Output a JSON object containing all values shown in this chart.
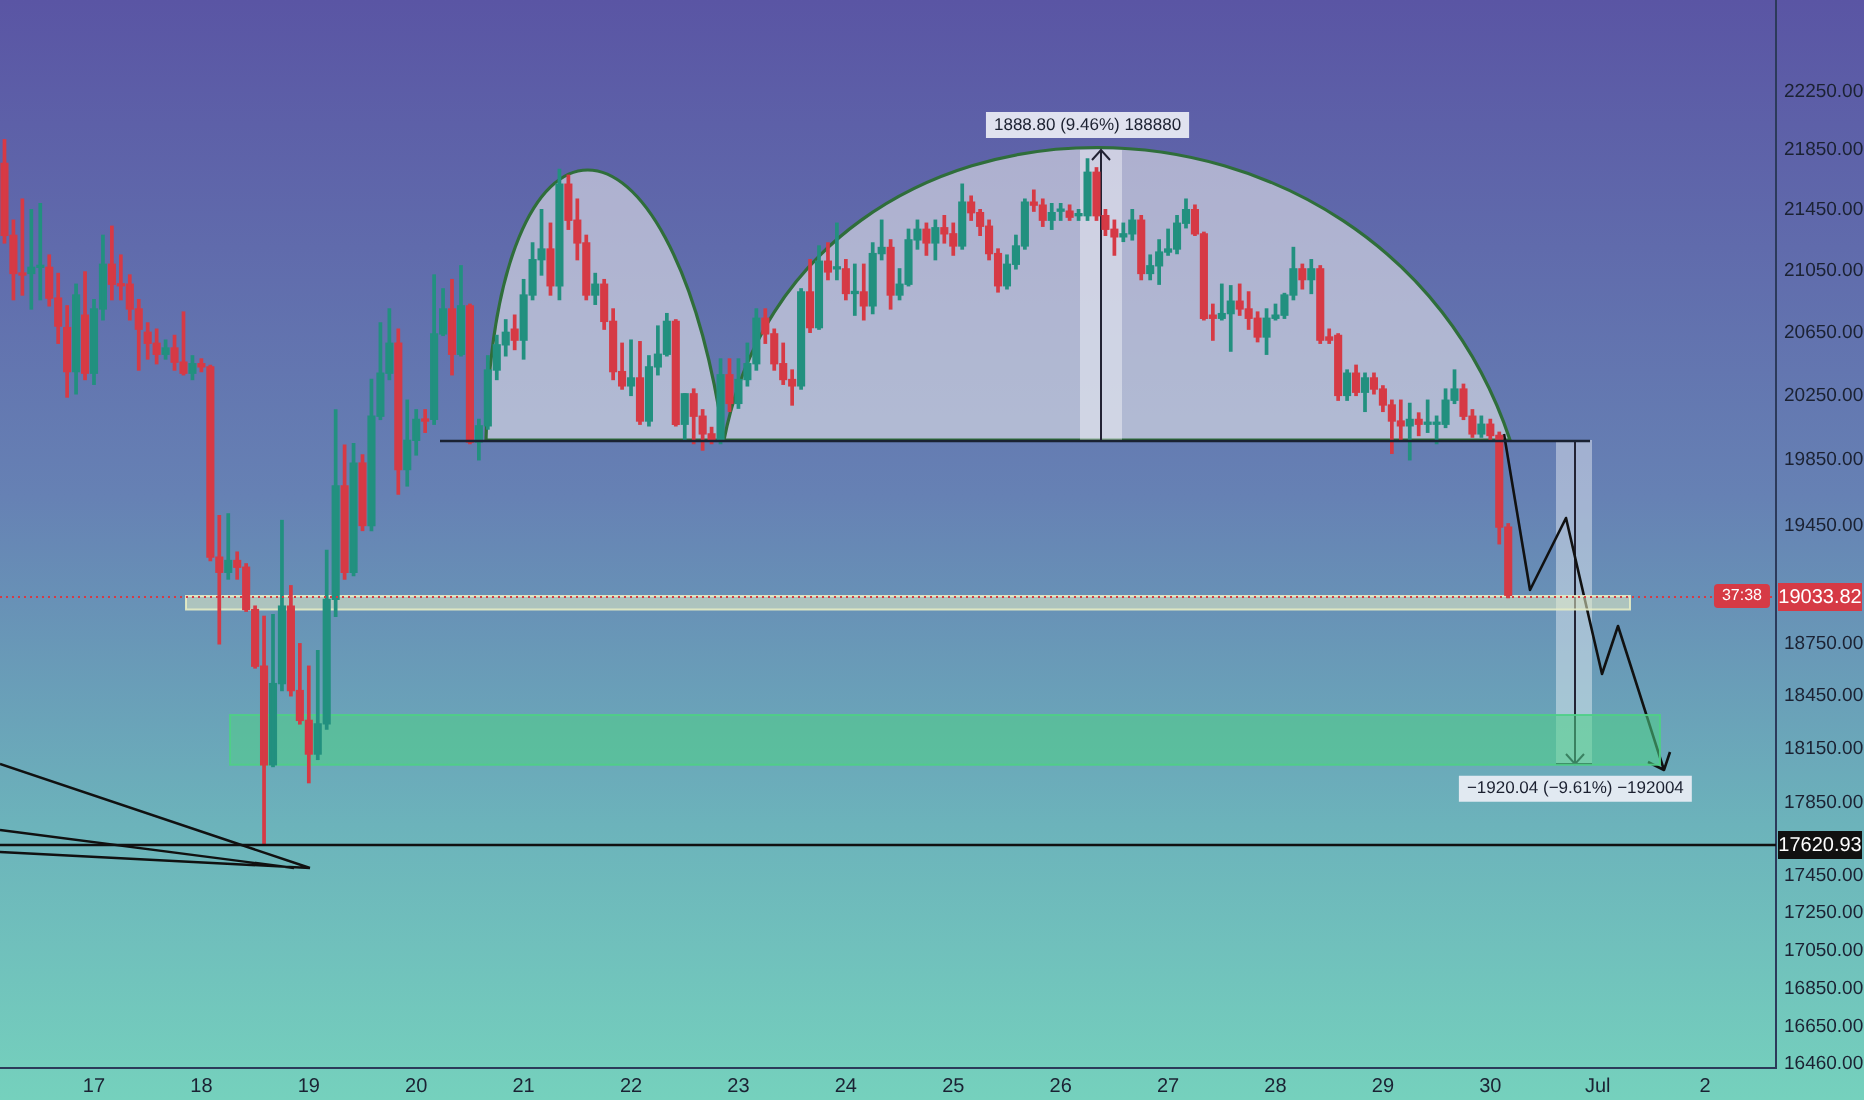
{
  "chart_data": {
    "type": "candlestick",
    "log": true,
    "x": [
      "--06-16T04:00",
      "--06-16T06:00",
      "--06-16T08:00",
      "--06-16T10:00",
      "--06-16T12:00",
      "--06-16T14:00",
      "--06-16T16:00",
      "--06-16T18:00",
      "--06-16T20:00",
      "--06-16T22:00",
      "--06-17T00:00",
      "--06-17T02:00",
      "--06-17T04:00",
      "--06-17T06:00",
      "--06-17T08:00",
      "--06-17T10:00",
      "--06-17T12:00",
      "--06-17T14:00",
      "--06-17T16:00",
      "--06-17T18:00",
      "--06-17T20:00",
      "--06-17T22:00",
      "--06-18T00:00",
      "--06-18T02:00",
      "--06-18T04:00",
      "--06-18T06:00",
      "--06-18T08:00",
      "--06-18T10:00",
      "--06-18T12:00",
      "--06-18T14:00",
      "--06-18T16:00",
      "--06-18T18:00",
      "--06-18T20:00",
      "--06-18T22:00",
      "--06-19T00:00",
      "--06-19T02:00",
      "--06-19T04:00",
      "--06-19T06:00",
      "--06-19T08:00",
      "--06-19T10:00",
      "--06-19T12:00",
      "--06-19T14:00",
      "--06-19T16:00",
      "--06-19T18:00",
      "--06-19T20:00",
      "--06-19T22:00",
      "--06-20T00:00",
      "--06-20T02:00",
      "--06-20T04:00",
      "--06-20T06:00",
      "--06-20T08:00",
      "--06-20T10:00",
      "--06-20T12:00",
      "--06-20T14:00",
      "--06-20T16:00",
      "--06-20T18:00",
      "--06-20T20:00",
      "--06-20T22:00",
      "--06-21T00:00",
      "--06-21T02:00",
      "--06-21T04:00",
      "--06-21T06:00",
      "--06-21T08:00",
      "--06-21T10:00",
      "--06-21T12:00",
      "--06-21T14:00",
      "--06-21T16:00",
      "--06-21T18:00",
      "--06-21T20:00",
      "--06-21T22:00",
      "--06-22T00:00",
      "--06-22T02:00",
      "--06-22T04:00",
      "--06-22T06:00",
      "--06-22T08:00",
      "--06-22T10:00",
      "--06-22T12:00",
      "--06-22T14:00",
      "--06-22T16:00",
      "--06-22T18:00",
      "--06-22T20:00",
      "--06-22T22:00",
      "--06-23T00:00",
      "--06-23T02:00",
      "--06-23T04:00",
      "--06-23T06:00",
      "--06-23T08:00",
      "--06-23T10:00",
      "--06-23T12:00",
      "--06-23T14:00",
      "--06-23T16:00",
      "--06-23T18:00",
      "--06-23T20:00",
      "--06-23T22:00",
      "--06-24T00:00",
      "--06-24T02:00",
      "--06-24T04:00",
      "--06-24T06:00",
      "--06-24T08:00",
      "--06-24T10:00",
      "--06-24T12:00",
      "--06-24T14:00",
      "--06-24T16:00",
      "--06-24T18:00",
      "--06-24T20:00",
      "--06-24T22:00",
      "--06-25T00:00",
      "--06-25T02:00",
      "--06-25T04:00",
      "--06-25T06:00",
      "--06-25T08:00",
      "--06-25T10:00",
      "--06-25T12:00",
      "--06-25T14:00",
      "--06-25T16:00",
      "--06-25T18:00",
      "--06-25T20:00",
      "--06-25T22:00",
      "--06-26T00:00",
      "--06-26T02:00",
      "--06-26T04:00",
      "--06-26T06:00",
      "--06-26T08:00",
      "--06-26T10:00",
      "--06-26T12:00",
      "--06-26T14:00",
      "--06-26T16:00",
      "--06-26T18:00",
      "--06-26T20:00",
      "--06-26T22:00",
      "--06-27T00:00",
      "--06-27T02:00",
      "--06-27T04:00",
      "--06-27T06:00",
      "--06-27T08:00",
      "--06-27T10:00",
      "--06-27T12:00",
      "--06-27T14:00",
      "--06-27T16:00",
      "--06-27T18:00",
      "--06-27T20:00",
      "--06-27T22:00",
      "--06-28T00:00",
      "--06-28T02:00",
      "--06-28T04:00",
      "--06-28T06:00",
      "--06-28T08:00",
      "--06-28T10:00",
      "--06-28T12:00",
      "--06-28T14:00",
      "--06-28T16:00",
      "--06-28T18:00",
      "--06-28T20:00",
      "--06-28T22:00",
      "--06-29T00:00",
      "--06-29T02:00",
      "--06-29T04:00",
      "--06-29T06:00",
      "--06-29T08:00",
      "--06-29T10:00",
      "--06-29T12:00",
      "--06-29T14:00",
      "--06-29T16:00",
      "--06-29T18:00",
      "--06-29T20:00",
      "--06-29T22:00",
      "--06-30T00:00",
      "--06-30T02:00",
      "--06-30T04:00"
    ],
    "ohlc": [
      [
        21760,
        21920,
        21230,
        21280
      ],
      [
        21280,
        21380,
        20860,
        21030
      ],
      [
        21030,
        21520,
        20890,
        21020
      ],
      [
        21030,
        21450,
        20800,
        21070
      ],
      [
        21070,
        21490,
        20860,
        21070
      ],
      [
        21070,
        21150,
        20820,
        20870
      ],
      [
        20870,
        21030,
        20580,
        20690
      ],
      [
        20680,
        20820,
        20240,
        20400
      ],
      [
        20400,
        20960,
        20260,
        20890
      ],
      [
        20760,
        21040,
        20350,
        20390
      ],
      [
        20390,
        20860,
        20320,
        20800
      ],
      [
        20800,
        21280,
        20730,
        21090
      ],
      [
        21090,
        21340,
        20860,
        20960
      ],
      [
        20960,
        21150,
        20860,
        20950
      ],
      [
        20960,
        21020,
        20730,
        20800
      ],
      [
        20800,
        20860,
        20410,
        20670
      ],
      [
        20650,
        20710,
        20480,
        20580
      ],
      [
        20580,
        20670,
        20450,
        20510
      ],
      [
        20510,
        20600,
        20480,
        20550
      ],
      [
        20550,
        20630,
        20410,
        20460
      ],
      [
        20460,
        20780,
        20380,
        20390
      ],
      [
        20390,
        20500,
        20350,
        20450
      ],
      [
        20450,
        20480,
        20400,
        20430
      ],
      [
        20430,
        20440,
        19240,
        19260
      ],
      [
        19260,
        19510,
        18750,
        19170
      ],
      [
        19170,
        19520,
        19130,
        19240
      ],
      [
        19240,
        19290,
        19130,
        19200
      ],
      [
        19200,
        19220,
        18940,
        18950
      ],
      [
        18950,
        18970,
        18610,
        18620
      ],
      [
        18620,
        18910,
        17621,
        18060
      ],
      [
        18060,
        18920,
        18050,
        18520
      ],
      [
        18520,
        19480,
        18480,
        18970
      ],
      [
        18970,
        19090,
        18450,
        18480
      ],
      [
        18480,
        18750,
        18290,
        18310
      ],
      [
        18310,
        18620,
        17960,
        18120
      ],
      [
        18120,
        18710,
        18090,
        18290
      ],
      [
        18290,
        19300,
        18260,
        19010
      ],
      [
        19010,
        20160,
        18910,
        19690
      ],
      [
        19690,
        19940,
        19130,
        19170
      ],
      [
        19170,
        19950,
        19150,
        19830
      ],
      [
        19830,
        19880,
        19420,
        19450
      ],
      [
        19450,
        20350,
        19420,
        20120
      ],
      [
        20120,
        20710,
        20100,
        20390
      ],
      [
        20390,
        20800,
        20350,
        20580
      ],
      [
        20580,
        20670,
        19640,
        19790
      ],
      [
        19790,
        20220,
        19690,
        19970
      ],
      [
        19970,
        20160,
        19880,
        20100
      ],
      [
        20100,
        20160,
        20020,
        20090
      ],
      [
        20100,
        21020,
        20070,
        20640
      ],
      [
        20640,
        20930,
        20630,
        20800
      ],
      [
        20800,
        20990,
        20380,
        20510
      ],
      [
        20510,
        21080,
        20500,
        20820
      ],
      [
        20820,
        20830,
        19950,
        19960
      ],
      [
        19960,
        20100,
        19850,
        20060
      ],
      [
        20060,
        20500,
        20040,
        20410
      ],
      [
        20410,
        20630,
        20350,
        20570
      ],
      [
        20570,
        20730,
        20500,
        20650
      ],
      [
        20670,
        20760,
        20540,
        20600
      ],
      [
        20600,
        20990,
        20480,
        20890
      ],
      [
        20890,
        21230,
        20860,
        21120
      ],
      [
        21120,
        21450,
        21020,
        21190
      ],
      [
        21190,
        21360,
        20890,
        20950
      ],
      [
        20950,
        21720,
        20860,
        21620
      ],
      [
        21620,
        21680,
        21320,
        21380
      ],
      [
        21380,
        21520,
        21120,
        21230
      ],
      [
        21230,
        21280,
        20860,
        20890
      ],
      [
        20890,
        21030,
        20830,
        20960
      ],
      [
        20960,
        20990,
        20670,
        20720
      ],
      [
        20720,
        20800,
        20350,
        20400
      ],
      [
        20400,
        20580,
        20290,
        20310
      ],
      [
        20310,
        20600,
        20250,
        20360
      ],
      [
        20360,
        20590,
        20070,
        20090
      ],
      [
        20090,
        20500,
        20060,
        20430
      ],
      [
        20430,
        20690,
        20380,
        20510
      ],
      [
        20510,
        20770,
        20500,
        20720
      ],
      [
        20720,
        20730,
        20060,
        20070
      ],
      [
        20070,
        20260,
        19970,
        20260
      ],
      [
        20260,
        20290,
        19950,
        20120
      ],
      [
        20120,
        20160,
        19910,
        20010
      ],
      [
        20010,
        20050,
        19950,
        19970
      ],
      [
        19970,
        20480,
        19950,
        20380
      ],
      [
        20380,
        20480,
        20150,
        20200
      ],
      [
        20200,
        20480,
        20170,
        20350
      ],
      [
        20350,
        20580,
        20310,
        20450
      ],
      [
        20450,
        20800,
        20410,
        20740
      ],
      [
        20740,
        20800,
        20580,
        20640
      ],
      [
        20640,
        20670,
        20410,
        20450
      ],
      [
        20450,
        20580,
        20320,
        20350
      ],
      [
        20350,
        20410,
        20190,
        20310
      ],
      [
        20310,
        20930,
        20290,
        20910
      ],
      [
        20910,
        21120,
        20650,
        20680
      ],
      [
        20680,
        21210,
        20670,
        21110
      ],
      [
        21110,
        21230,
        20990,
        21040
      ],
      [
        21060,
        21360,
        20990,
        21070
      ],
      [
        21060,
        21120,
        20860,
        20900
      ],
      [
        20900,
        21090,
        20760,
        20910
      ],
      [
        20910,
        21090,
        20730,
        20820
      ],
      [
        20820,
        21230,
        20770,
        21160
      ],
      [
        21160,
        21380,
        21120,
        21200
      ],
      [
        21200,
        21250,
        20800,
        20890
      ],
      [
        20890,
        21060,
        20860,
        20960
      ],
      [
        20960,
        21320,
        20950,
        21250
      ],
      [
        21250,
        21380,
        21190,
        21320
      ],
      [
        21320,
        21360,
        21150,
        21230
      ],
      [
        21230,
        21380,
        21120,
        21330
      ],
      [
        21330,
        21410,
        21230,
        21290
      ],
      [
        21290,
        21360,
        21150,
        21210
      ],
      [
        21210,
        21620,
        21190,
        21500
      ],
      [
        21500,
        21540,
        21380,
        21430
      ],
      [
        21430,
        21450,
        21280,
        21340
      ],
      [
        21340,
        21380,
        21120,
        21160
      ],
      [
        21160,
        21190,
        20910,
        20950
      ],
      [
        20950,
        21150,
        20930,
        21090
      ],
      [
        21090,
        21280,
        21060,
        21210
      ],
      [
        21210,
        21520,
        21190,
        21500
      ],
      [
        21500,
        21580,
        21440,
        21480
      ],
      [
        21480,
        21520,
        21340,
        21380
      ],
      [
        21380,
        21490,
        21320,
        21430
      ],
      [
        21440,
        21490,
        21380,
        21440
      ],
      [
        21440,
        21480,
        21380,
        21400
      ],
      [
        21410,
        21450,
        21380,
        21410
      ],
      [
        21410,
        21790,
        21380,
        21700
      ],
      [
        21700,
        21730,
        21380,
        21410
      ],
      [
        21410,
        21450,
        21280,
        21320
      ],
      [
        21320,
        21380,
        21150,
        21270
      ],
      [
        21270,
        21360,
        21240,
        21290
      ],
      [
        21290,
        21450,
        21250,
        21380
      ],
      [
        21380,
        21410,
        20990,
        21030
      ],
      [
        21030,
        21150,
        20990,
        21080
      ],
      [
        21080,
        21250,
        20960,
        21170
      ],
      [
        21170,
        21320,
        21150,
        21190
      ],
      [
        21190,
        21410,
        21160,
        21360
      ],
      [
        21360,
        21520,
        21330,
        21450
      ],
      [
        21450,
        21480,
        21280,
        21290
      ],
      [
        21290,
        21300,
        20730,
        20740
      ],
      [
        20760,
        20830,
        20600,
        20740
      ],
      [
        20740,
        20960,
        20730,
        20770
      ],
      [
        20770,
        20950,
        20530,
        20850
      ],
      [
        20850,
        20960,
        20760,
        20800
      ],
      [
        20800,
        20910,
        20670,
        20740
      ],
      [
        20740,
        20780,
        20590,
        20620
      ],
      [
        20620,
        20800,
        20510,
        20740
      ],
      [
        20740,
        20830,
        20730,
        20760
      ],
      [
        20760,
        20900,
        20740,
        20890
      ],
      [
        20890,
        21200,
        20860,
        21060
      ],
      [
        21060,
        21090,
        20930,
        20990
      ],
      [
        20990,
        21120,
        20900,
        21060
      ],
      [
        21060,
        21080,
        20580,
        20600
      ],
      [
        20620,
        20670,
        20580,
        20600
      ],
      [
        20630,
        20640,
        20220,
        20250
      ],
      [
        20250,
        20410,
        20220,
        20390
      ],
      [
        20390,
        20440,
        20250,
        20270
      ],
      [
        20270,
        20390,
        20150,
        20360
      ],
      [
        20360,
        20390,
        20260,
        20290
      ],
      [
        20290,
        20310,
        20150,
        20190
      ],
      [
        20190,
        20220,
        19890,
        20090
      ],
      [
        20090,
        20220,
        19970,
        20060
      ],
      [
        20060,
        20200,
        19850,
        20100
      ],
      [
        20100,
        20140,
        20000,
        20070
      ],
      [
        20070,
        20220,
        20020,
        20070
      ],
      [
        20070,
        20120,
        19950,
        20070
      ],
      [
        20070,
        20290,
        20050,
        20220
      ],
      [
        20220,
        20410,
        20200,
        20290
      ],
      [
        20290,
        20320,
        20100,
        20120
      ],
      [
        20120,
        20160,
        19990,
        20010
      ],
      [
        20010,
        20120,
        19990,
        20070
      ],
      [
        20070,
        20100,
        19970,
        20000
      ],
      [
        20000,
        20020,
        19340,
        19440
      ],
      [
        19440,
        19460,
        19020,
        19033.82
      ]
    ],
    "colors": [
      "#d63a45",
      "#d63a45",
      "#d63a45",
      "#22907f",
      "#22907f",
      "#d63a45",
      "#d63a45",
      "#d63a45",
      "#22907f",
      "#d63a45",
      "#22907f",
      "#22907f",
      "#d63a45",
      "#d63a45",
      "#d63a45",
      "#d63a45",
      "#d63a45",
      "#d63a45",
      "#22907f",
      "#d63a45",
      "#d63a45",
      "#22907f",
      "#d63a45",
      "#d63a45",
      "#d63a45",
      "#22907f",
      "#d63a45",
      "#d63a45",
      "#d63a45",
      "#d63a45",
      "#22907f",
      "#22907f",
      "#d63a45",
      "#d63a45",
      "#d63a45",
      "#22907f",
      "#22907f",
      "#22907f",
      "#d63a45",
      "#22907f",
      "#d63a45",
      "#22907f",
      "#22907f",
      "#22907f",
      "#d63a45",
      "#22907f",
      "#22907f",
      "#d63a45",
      "#22907f",
      "#22907f",
      "#d63a45",
      "#22907f",
      "#d63a45",
      "#22907f",
      "#22907f",
      "#22907f",
      "#22907f",
      "#d63a45",
      "#22907f",
      "#22907f",
      "#22907f",
      "#d63a45",
      "#22907f",
      "#d63a45",
      "#d63a45",
      "#d63a45",
      "#22907f",
      "#d63a45",
      "#d63a45",
      "#d63a45",
      "#22907f",
      "#d63a45",
      "#22907f",
      "#22907f",
      "#22907f",
      "#d63a45",
      "#22907f",
      "#d63a45",
      "#d63a45",
      "#d63a45",
      "#22907f",
      "#d63a45",
      "#22907f",
      "#22907f",
      "#22907f",
      "#d63a45",
      "#d63a45",
      "#d63a45",
      "#d63a45",
      "#22907f",
      "#d63a45",
      "#22907f",
      "#d63a45",
      "#22907f",
      "#d63a45",
      "#22907f",
      "#d63a45",
      "#22907f",
      "#22907f",
      "#d63a45",
      "#22907f",
      "#22907f",
      "#22907f",
      "#d63a45",
      "#22907f",
      "#d63a45",
      "#d63a45",
      "#22907f",
      "#d63a45",
      "#d63a45",
      "#d63a45",
      "#d63a45",
      "#22907f",
      "#22907f",
      "#22907f",
      "#d63a45",
      "#d63a45",
      "#22907f",
      "#22907f",
      "#d63a45",
      "#22907f",
      "#22907f",
      "#d63a45",
      "#d63a45",
      "#d63a45",
      "#22907f",
      "#22907f",
      "#d63a45",
      "#22907f",
      "#22907f",
      "#22907f",
      "#22907f",
      "#22907f",
      "#d63a45",
      "#d63a45",
      "#d63a45",
      "#22907f",
      "#22907f",
      "#d63a45",
      "#d63a45",
      "#d63a45",
      "#22907f",
      "#22907f",
      "#22907f",
      "#22907f",
      "#d63a45",
      "#22907f",
      "#d63a45",
      "#d63a45",
      "#d63a45",
      "#22907f",
      "#d63a45",
      "#22907f",
      "#d63a45",
      "#d63a45",
      "#d63a45",
      "#d63a45",
      "#22907f",
      "#d63a45",
      "#22907f",
      "#22907f",
      "#22907f",
      "#22907f",
      "#d63a45",
      "#d63a45",
      "#22907f",
      "#d63a45",
      "#d63a45",
      "#d63a45"
    ],
    "xlim": [
      "--06-16T03:00",
      "--07-02T15:50"
    ],
    "xticks": [
      {
        "value": "--06-17",
        "label": "17"
      },
      {
        "value": "--06-18",
        "label": "18"
      },
      {
        "value": "--06-19",
        "label": "19"
      },
      {
        "value": "--06-20",
        "label": "20"
      },
      {
        "value": "--06-21",
        "label": "21"
      },
      {
        "value": "--06-22",
        "label": "22"
      },
      {
        "value": "--06-23",
        "label": "23"
      },
      {
        "value": "--06-24",
        "label": "24"
      },
      {
        "value": "--06-25",
        "label": "25"
      },
      {
        "value": "--06-26",
        "label": "26"
      },
      {
        "value": "--06-27",
        "label": "27"
      },
      {
        "value": "--06-28",
        "label": "28"
      },
      {
        "value": "--06-29",
        "label": "29"
      },
      {
        "value": "--06-30",
        "label": "30"
      },
      {
        "value": "--07-01",
        "label": "Jul"
      },
      {
        "value": "--07-02",
        "label": "2"
      }
    ],
    "ylim": [
      16440,
      22890
    ],
    "yticks": [
      {
        "value": 22250,
        "label": "22250.00"
      },
      {
        "value": 21850,
        "label": "21850.00"
      },
      {
        "value": 21450,
        "label": "21450.00"
      },
      {
        "value": 21050,
        "label": "21050.00"
      },
      {
        "value": 20650,
        "label": "20650.00"
      },
      {
        "value": 20250,
        "label": "20250.00"
      },
      {
        "value": 19850,
        "label": "19850.00"
      },
      {
        "value": 19450,
        "label": "19450.00"
      },
      {
        "value": 18750,
        "label": "18750.00"
      },
      {
        "value": 18450,
        "label": "18450.00"
      },
      {
        "value": 18150,
        "label": "18150.00"
      },
      {
        "value": 17850,
        "label": "17850.00"
      },
      {
        "value": 17450,
        "label": "17450.00"
      },
      {
        "value": 17250,
        "label": "17250.00"
      },
      {
        "value": 17050,
        "label": "17050.00"
      },
      {
        "value": 16850,
        "label": "16850.00"
      },
      {
        "value": 16650,
        "label": "16650.00"
      },
      {
        "value": 16460,
        "label": "16460.00"
      }
    ],
    "ref_lines": [
      {
        "axis": "y",
        "value": 17620.93,
        "label": "17620.93",
        "color": "#111111"
      },
      {
        "axis": "y",
        "value": 19033.82,
        "label": "19033.82",
        "color": "#d63a45",
        "line_style": "dotted"
      },
      {
        "axis": "y",
        "value": 19970,
        "color": "#1a2233"
      }
    ],
    "bands": [
      {
        "axis": "y",
        "from": 18950,
        "to": 19030,
        "color": "#e6ecc4"
      },
      {
        "axis": "y",
        "from": 18060,
        "to": 18340,
        "color": "#4fcf86"
      }
    ],
    "annotations": [
      {
        "text": "1888.80 (9.46%) 188880",
        "x": "--06-26T06:00",
        "y": 21790
      },
      {
        "text": "−1920.04 (−9.61%) −192004",
        "x": "--06-30T19:00",
        "y": 18060
      },
      "37:38"
    ]
  }
}
